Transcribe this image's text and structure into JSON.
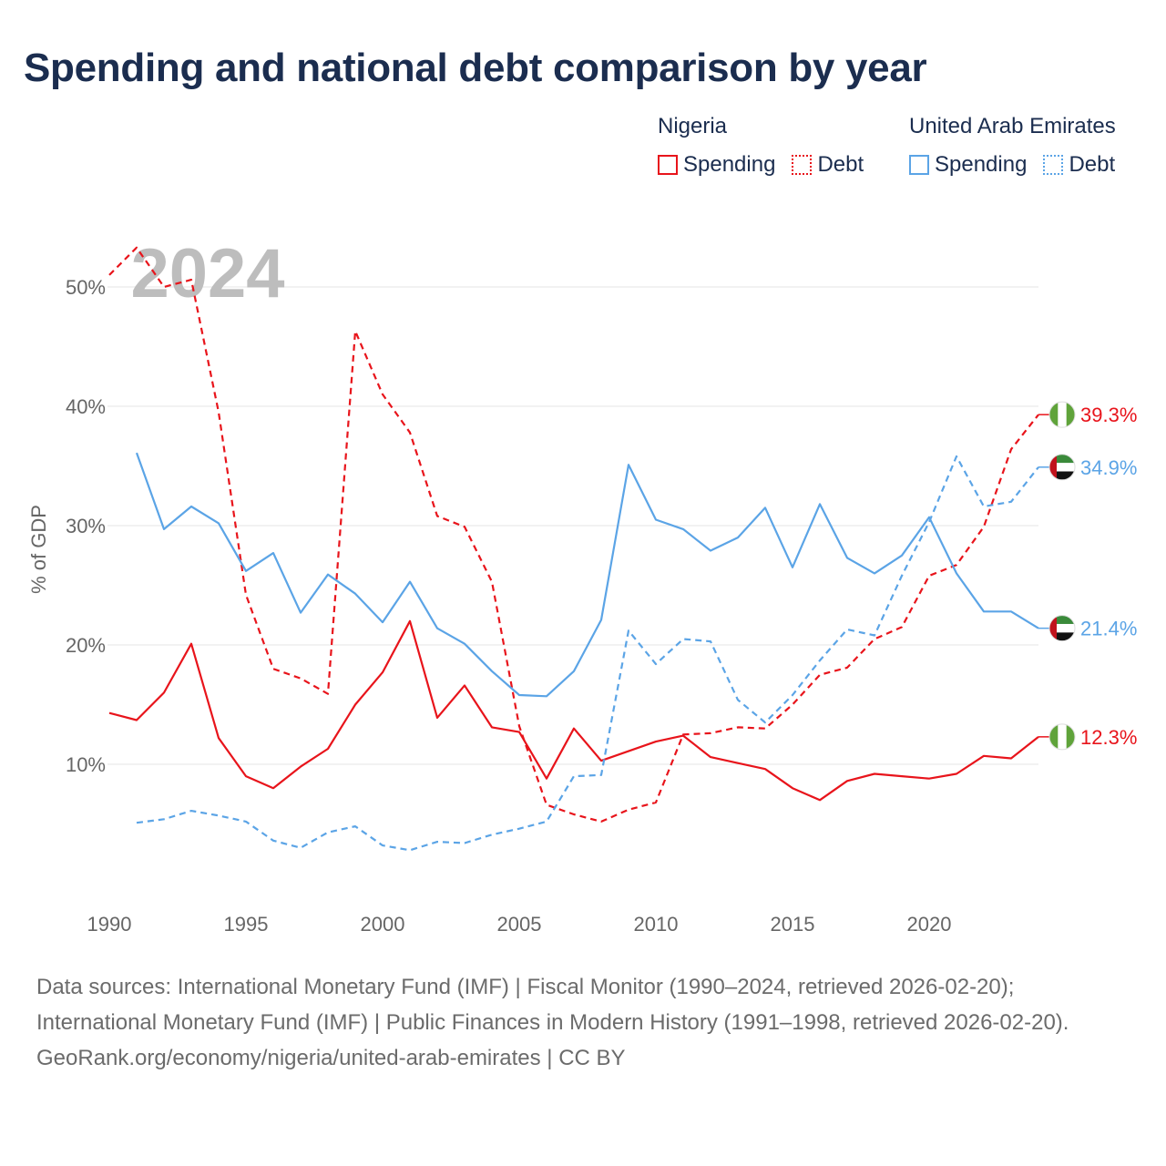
{
  "title": "Spending and national debt comparison by year",
  "legend": {
    "groups": [
      {
        "country": "Nigeria",
        "color": "#e8141b",
        "items": [
          {
            "label": "Spending",
            "style": "solid"
          },
          {
            "label": "Debt",
            "style": "dotted"
          }
        ]
      },
      {
        "country": "United Arab Emirates",
        "color": "#5ba4e6",
        "items": [
          {
            "label": "Spending",
            "style": "solid"
          },
          {
            "label": "Debt",
            "style": "dotted"
          }
        ]
      }
    ]
  },
  "chart_data": {
    "type": "line",
    "year_label": "2024",
    "ylabel": "% of GDP",
    "xlim": [
      1990,
      2024
    ],
    "ylim": [
      0,
      50
    ],
    "x_ticks": [
      1990,
      1995,
      2000,
      2005,
      2010,
      2015,
      2020
    ],
    "y_ticks": [
      {
        "value": 10,
        "label": "10%"
      },
      {
        "value": 20,
        "label": "20%"
      },
      {
        "value": 30,
        "label": "30%"
      },
      {
        "value": 40,
        "label": "40%"
      },
      {
        "value": 50,
        "label": "50%"
      }
    ],
    "series": [
      {
        "name": "Nigeria Spending",
        "country": "Nigeria",
        "metric": "Spending",
        "color": "#e8141b",
        "dash": false,
        "x": [
          1990,
          1991,
          1992,
          1993,
          1994,
          1995,
          1996,
          1997,
          1998,
          1999,
          2000,
          2001,
          2002,
          2003,
          2004,
          2005,
          2006,
          2007,
          2008,
          2009,
          2010,
          2011,
          2012,
          2013,
          2014,
          2015,
          2016,
          2017,
          2018,
          2019,
          2020,
          2021,
          2022,
          2023,
          2024
        ],
        "values": [
          14.3,
          13.7,
          16.0,
          20.1,
          12.2,
          9.0,
          8.0,
          9.8,
          11.3,
          15.0,
          17.7,
          22.0,
          13.9,
          16.6,
          13.1,
          12.7,
          8.8,
          13.0,
          10.3,
          11.1,
          11.9,
          12.4,
          10.6,
          10.1,
          9.6,
          8.0,
          7.0,
          8.6,
          9.2,
          9.0,
          8.8,
          9.2,
          10.7,
          10.5,
          12.3
        ],
        "end_label": "12.3%",
        "flag": "nigeria"
      },
      {
        "name": "Nigeria Debt",
        "country": "Nigeria",
        "metric": "Debt",
        "color": "#e8141b",
        "dash": true,
        "x": [
          1990,
          1991,
          1992,
          1993,
          1994,
          1995,
          1996,
          1997,
          1998,
          1999,
          2000,
          2001,
          2002,
          2003,
          2004,
          2005,
          2006,
          2007,
          2008,
          2009,
          2010,
          2011,
          2012,
          2013,
          2014,
          2015,
          2016,
          2017,
          2018,
          2019,
          2020,
          2021,
          2022,
          2023,
          2024
        ],
        "values": [
          51.0,
          53.3,
          50.0,
          50.6,
          39.5,
          24.2,
          18.0,
          17.2,
          15.9,
          46.3,
          41.0,
          37.8,
          30.8,
          29.9,
          25.3,
          13.2,
          6.6,
          5.8,
          5.2,
          6.2,
          6.8,
          12.5,
          12.6,
          13.1,
          13.0,
          15.0,
          17.5,
          18.1,
          20.5,
          21.5,
          25.8,
          26.7,
          29.9,
          36.4,
          39.3
        ],
        "end_label": "39.3%",
        "flag": "nigeria"
      },
      {
        "name": "United Arab Emirates Spending",
        "country": "United Arab Emirates",
        "metric": "Spending",
        "color": "#5ba4e6",
        "dash": false,
        "x": [
          1991,
          1992,
          1993,
          1994,
          1995,
          1996,
          1997,
          1998,
          1999,
          2000,
          2001,
          2002,
          2003,
          2004,
          2005,
          2006,
          2007,
          2008,
          2009,
          2010,
          2011,
          2012,
          2013,
          2014,
          2015,
          2016,
          2017,
          2018,
          2019,
          2020,
          2021,
          2022,
          2023,
          2024
        ],
        "values": [
          36.1,
          29.7,
          31.6,
          30.2,
          26.2,
          27.7,
          22.7,
          25.9,
          24.3,
          21.9,
          25.3,
          21.4,
          20.1,
          17.8,
          15.8,
          15.7,
          17.8,
          22.1,
          35.1,
          30.5,
          29.7,
          27.9,
          29.0,
          31.5,
          26.5,
          31.8,
          27.3,
          26.0,
          27.5,
          30.7,
          26.0,
          22.8,
          22.8,
          21.4
        ],
        "end_label": "21.4%",
        "flag": "uae"
      },
      {
        "name": "United Arab Emirates Debt",
        "country": "United Arab Emirates",
        "metric": "Debt",
        "color": "#5ba4e6",
        "dash": true,
        "x": [
          1991,
          1992,
          1993,
          1994,
          1995,
          1996,
          1997,
          1998,
          1999,
          2000,
          2001,
          2002,
          2003,
          2004,
          2005,
          2006,
          2007,
          2008,
          2009,
          2010,
          2011,
          2012,
          2013,
          2014,
          2015,
          2016,
          2017,
          2018,
          2019,
          2020,
          2021,
          2022,
          2023,
          2024
        ],
        "values": [
          5.1,
          5.4,
          6.1,
          5.7,
          5.2,
          3.6,
          3.0,
          4.3,
          4.8,
          3.2,
          2.8,
          3.5,
          3.4,
          4.1,
          4.6,
          5.2,
          9.0,
          9.1,
          21.2,
          18.4,
          20.5,
          20.3,
          15.4,
          13.5,
          15.8,
          18.7,
          21.3,
          20.8,
          25.8,
          30.3,
          35.8,
          31.6,
          32.0,
          34.9
        ],
        "end_label": "34.9%",
        "flag": "uae"
      }
    ]
  },
  "footer": {
    "sources": "Data sources: International Monetary Fund (IMF) | Fiscal Monitor (1990–2024, retrieved 2026-02-20); International Monetary Fund (IMF) | Public Finances in Modern History (1991–1998, retrieved 2026-02-20).",
    "credit": "GeoRank.org/economy/nigeria/united-arab-emirates | CC BY"
  }
}
